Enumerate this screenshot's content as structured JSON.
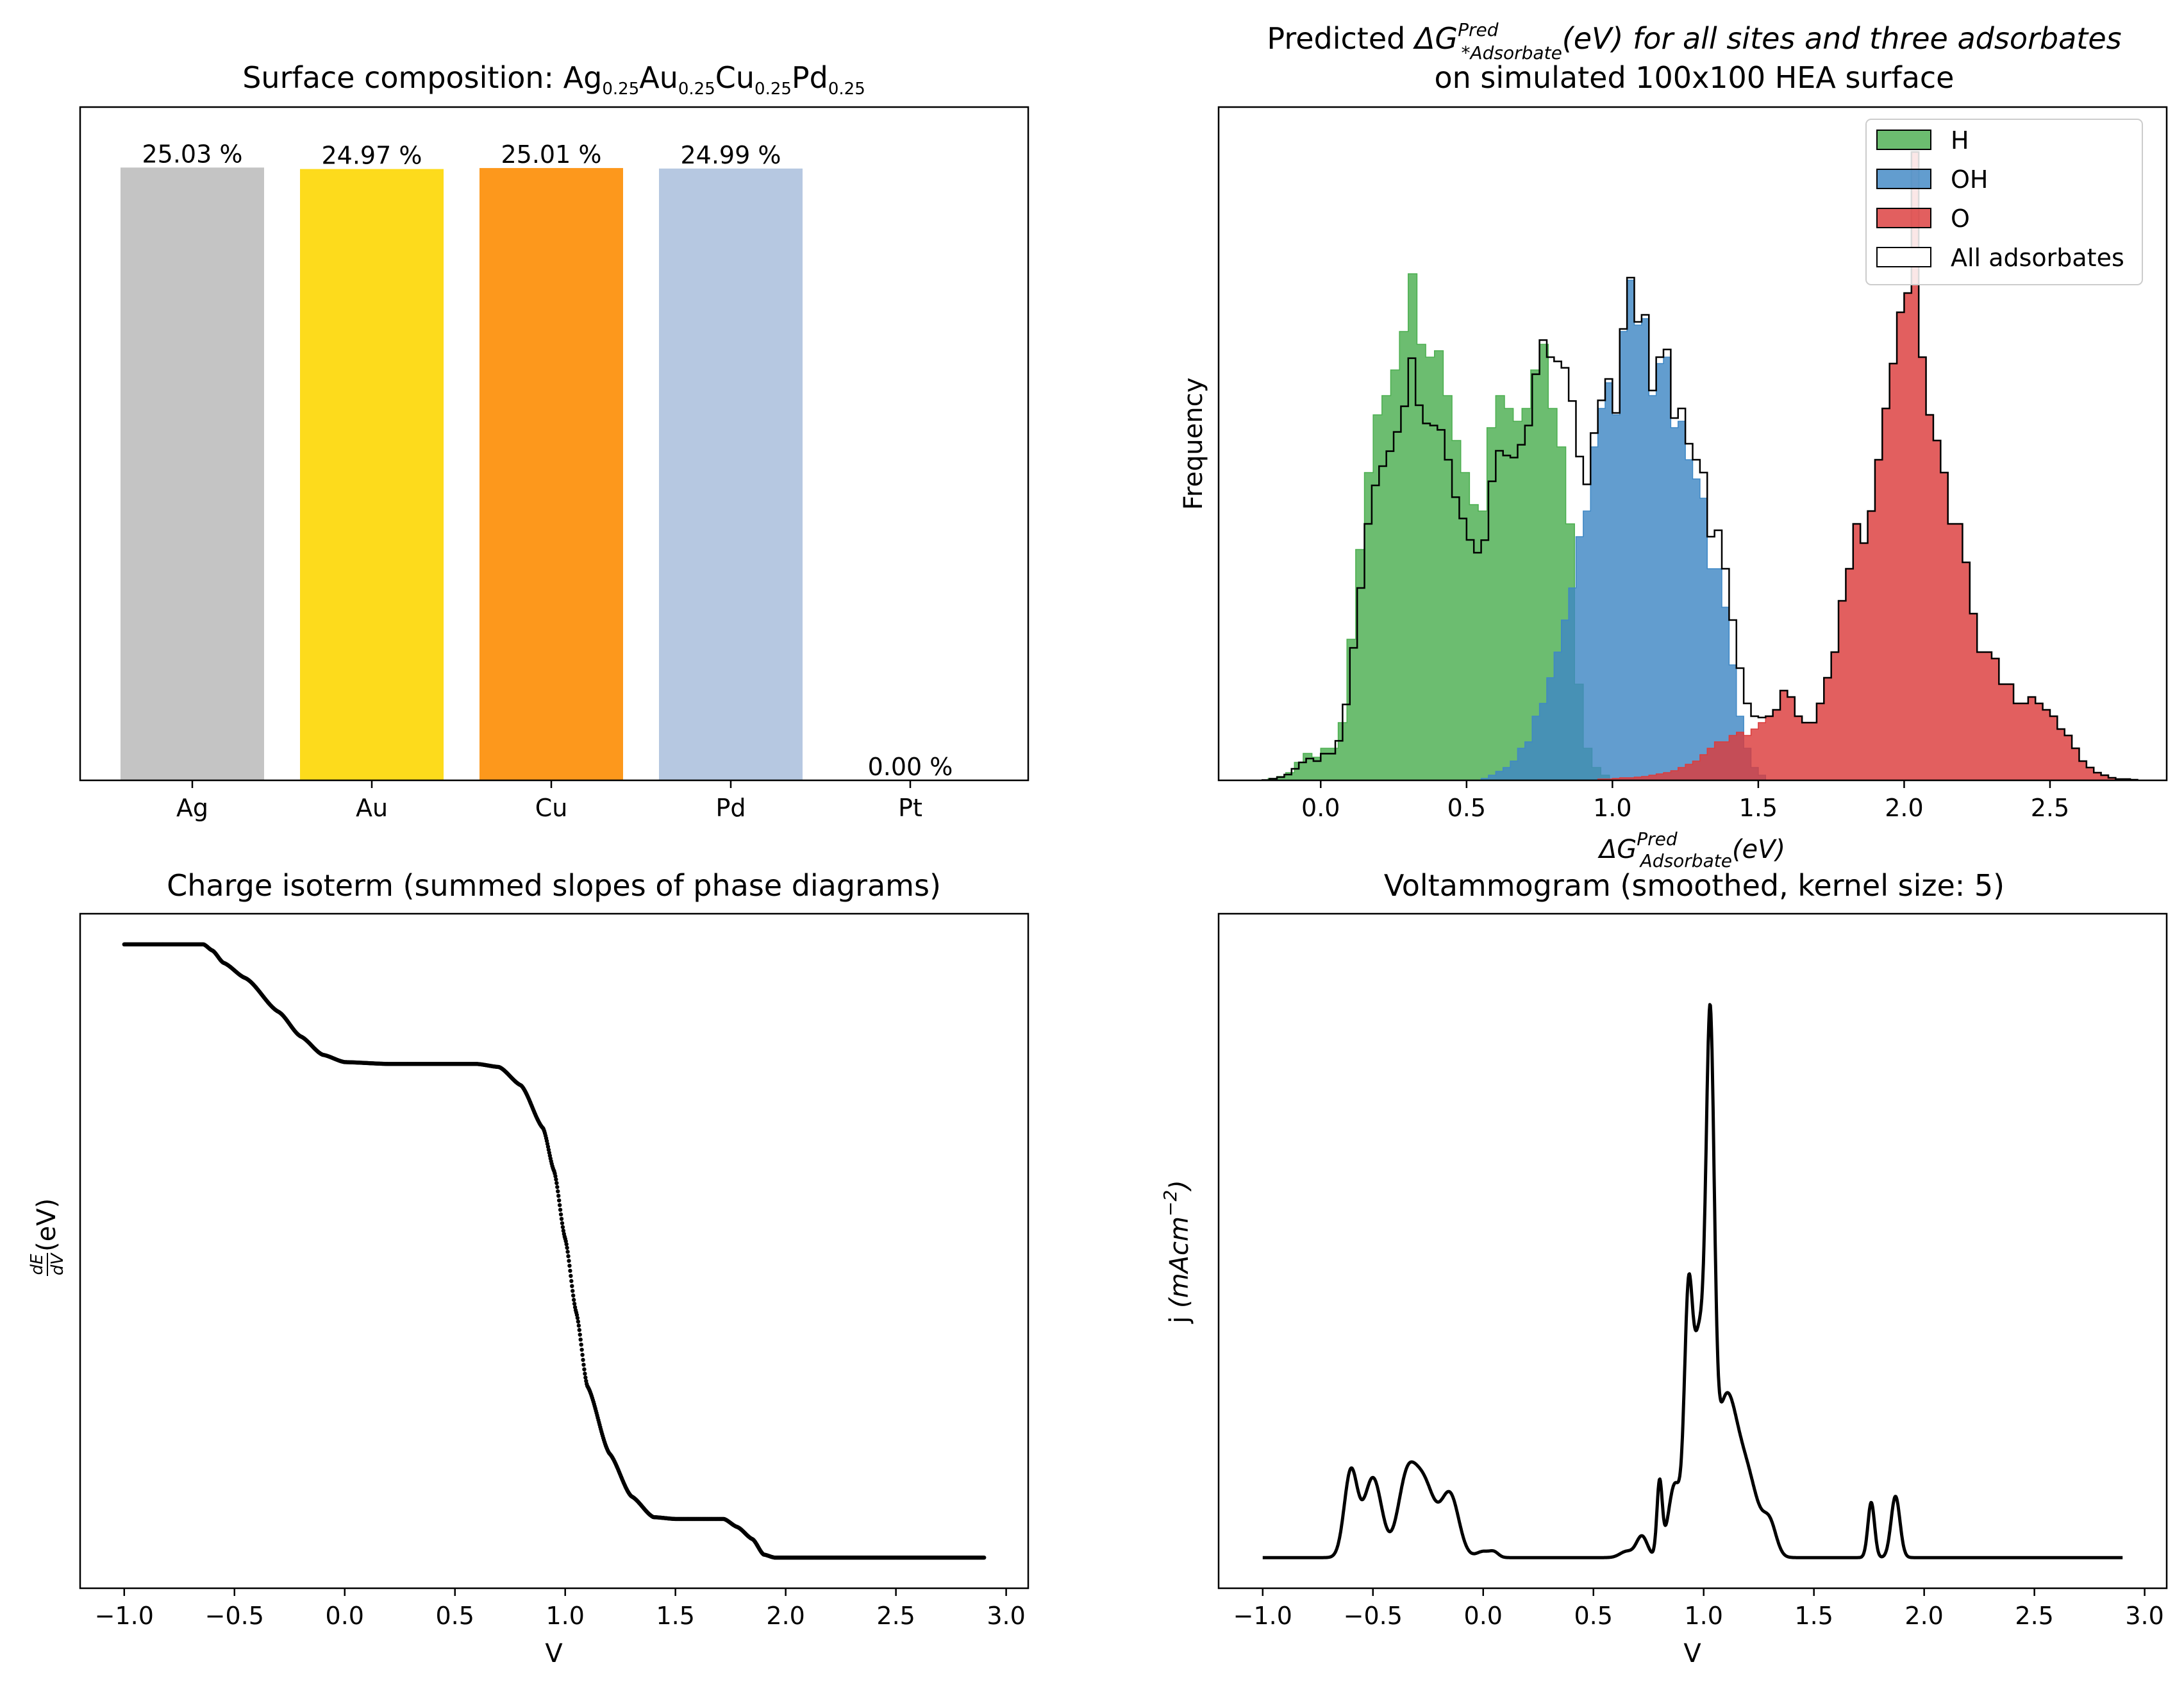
{
  "chart_data": [
    {
      "type": "bar",
      "title_main": "Surface composition: ",
      "title_parts": [
        {
          "el": "Ag",
          "sub": "0.25"
        },
        {
          "el": "Au",
          "sub": "0.25"
        },
        {
          "el": "Cu",
          "sub": "0.25"
        },
        {
          "el": "Pd",
          "sub": "0.25"
        }
      ],
      "categories": [
        "Ag",
        "Au",
        "Cu",
        "Pd",
        "Pt"
      ],
      "values": [
        25.03,
        24.97,
        25.01,
        24.99,
        0.0
      ],
      "value_labels": [
        "25.03 %",
        "24.97 %",
        "25.01 %",
        "24.99 %",
        "0.00 %"
      ],
      "colors": [
        "#c4c4c4",
        "#fddb1c",
        "#fd981c",
        "#b6c8e1",
        "#e5e4e2"
      ],
      "ylim": [
        0,
        27.5
      ],
      "yticks_shown": false
    },
    {
      "type": "histogram",
      "title_line1_pre": "Predicted ",
      "title_line1_sym": "ΔG",
      "title_line1_sup": "Pred",
      "title_line1_sub": "*Adsorbate",
      "title_line1_post": "(eV) for all sites and three adsorbates",
      "title_line2": "on simulated 100x100 HEA surface",
      "xlabel_sym": "ΔG",
      "xlabel_sup": "Pred",
      "xlabel_sub": "Adsorbate",
      "xlabel_post": "(eV)",
      "ylabel": "Frequency",
      "xlim": [
        -0.35,
        2.9
      ],
      "xticks": [
        0.0,
        0.5,
        1.0,
        1.5,
        2.0,
        2.5
      ],
      "xtick_labels": [
        "0.0",
        "0.5",
        "1.0",
        "1.5",
        "2.0",
        "2.5"
      ],
      "ylim": [
        0,
        1.05
      ],
      "legend": [
        "H",
        "OH",
        "O",
        "All adsorbates"
      ],
      "legend_position": "upper right",
      "series": [
        {
          "name": "H",
          "color": "#4caf50",
          "bin_width": 0.03,
          "bin_start": -0.18,
          "counts": [
            0.003,
            0.006,
            0.012,
            0.028,
            0.042,
            0.036,
            0.05,
            0.05,
            0.09,
            0.22,
            0.36,
            0.48,
            0.57,
            0.6,
            0.64,
            0.7,
            0.79,
            0.68,
            0.66,
            0.67,
            0.6,
            0.53,
            0.48,
            0.43,
            0.42,
            0.55,
            0.6,
            0.58,
            0.56,
            0.58,
            0.64,
            0.68,
            0.58,
            0.52,
            0.4,
            0.15,
            0.05,
            0.02,
            0.008
          ]
        },
        {
          "name": "OH",
          "color": "#3f88c5",
          "bin_width": 0.025,
          "bin_start": 0.55,
          "counts": [
            0.003,
            0.008,
            0.014,
            0.02,
            0.03,
            0.05,
            0.06,
            0.1,
            0.12,
            0.16,
            0.2,
            0.25,
            0.3,
            0.38,
            0.42,
            0.52,
            0.58,
            0.62,
            0.57,
            0.7,
            0.78,
            0.71,
            0.72,
            0.6,
            0.65,
            0.66,
            0.55,
            0.56,
            0.5,
            0.47,
            0.44,
            0.33,
            0.33,
            0.27,
            0.18,
            0.1,
            0.05,
            0.02,
            0.008
          ]
        },
        {
          "name": "O",
          "color": "#dc3c3c",
          "bin_width": 0.025,
          "bin_start": 0.95,
          "counts": [
            0.002,
            0.002,
            0.003,
            0.004,
            0.004,
            0.005,
            0.006,
            0.008,
            0.01,
            0.012,
            0.015,
            0.02,
            0.025,
            0.03,
            0.04,
            0.05,
            0.06,
            0.06,
            0.07,
            0.075,
            0.07,
            0.08,
            0.09,
            0.1,
            0.11,
            0.14,
            0.13,
            0.1,
            0.09,
            0.09,
            0.12,
            0.16,
            0.2,
            0.28,
            0.33,
            0.4,
            0.37,
            0.42,
            0.5,
            0.58,
            0.65,
            0.73,
            0.76,
            0.98,
            0.66,
            0.57,
            0.53,
            0.48,
            0.4,
            0.4,
            0.34,
            0.26,
            0.2,
            0.2,
            0.19,
            0.15,
            0.15,
            0.12,
            0.12,
            0.13,
            0.12,
            0.11,
            0.1,
            0.08,
            0.07,
            0.05,
            0.03,
            0.02,
            0.012,
            0.008,
            0.004,
            0.002,
            0.002,
            0.001
          ]
        }
      ],
      "all_line_color": "#000000"
    },
    {
      "type": "scatter",
      "title": "Charge isoterm (summed slopes of phase diagrams)",
      "xlabel": "V",
      "ylabel_frac_num": "dE",
      "ylabel_frac_den": "dV",
      "ylabel_post": " (eV)",
      "xlim": [
        -1.2,
        3.1
      ],
      "xticks": [
        -1.0,
        -0.5,
        0.0,
        0.5,
        1.0,
        1.5,
        2.0,
        2.5,
        3.0
      ],
      "xtick_labels": [
        "−1.0",
        "−0.5",
        "0.0",
        "0.5",
        "1.0",
        "1.5",
        "2.0",
        "2.5",
        "3.0"
      ],
      "ylim": [
        -0.05,
        1.05
      ],
      "x_range": [
        -1.0,
        2.9
      ],
      "curve_knots": [
        [
          -1.0,
          1.0
        ],
        [
          -0.64,
          1.0
        ],
        [
          -0.6,
          0.99
        ],
        [
          -0.55,
          0.97
        ],
        [
          -0.45,
          0.945
        ],
        [
          -0.3,
          0.89
        ],
        [
          -0.2,
          0.85
        ],
        [
          -0.1,
          0.82
        ],
        [
          0.0,
          0.808
        ],
        [
          0.2,
          0.805
        ],
        [
          0.6,
          0.805
        ],
        [
          0.7,
          0.8
        ],
        [
          0.8,
          0.77
        ],
        [
          0.9,
          0.7
        ],
        [
          0.95,
          0.63
        ],
        [
          1.0,
          0.52
        ],
        [
          1.05,
          0.4
        ],
        [
          1.1,
          0.28
        ],
        [
          1.2,
          0.17
        ],
        [
          1.3,
          0.1
        ],
        [
          1.4,
          0.066
        ],
        [
          1.5,
          0.063
        ],
        [
          1.72,
          0.063
        ],
        [
          1.78,
          0.05
        ],
        [
          1.85,
          0.03
        ],
        [
          1.9,
          0.005
        ],
        [
          1.95,
          0.0
        ],
        [
          2.9,
          0.0
        ]
      ]
    },
    {
      "type": "line",
      "title": "Voltammogram (smoothed, kernel size: 5)",
      "xlabel": "V",
      "ylabel_pre": "j ",
      "ylabel_unit": "(mAcm",
      "ylabel_exp": "−2",
      "ylabel_close": ")",
      "xlim": [
        -1.2,
        3.1
      ],
      "xticks": [
        -1.0,
        -0.5,
        0.0,
        0.5,
        1.0,
        1.5,
        2.0,
        2.5,
        3.0
      ],
      "xtick_labels": [
        "−1.0",
        "−0.5",
        "0.0",
        "0.5",
        "1.0",
        "1.5",
        "2.0",
        "2.5",
        "3.0"
      ],
      "ylim": [
        -0.05,
        1.05
      ],
      "x_range": [
        -1.0,
        2.9
      ],
      "peaks": [
        [
          -0.6,
          0.14,
          0.03
        ],
        [
          -0.5,
          0.13,
          0.04
        ],
        [
          -0.35,
          0.11,
          0.04
        ],
        [
          -0.27,
          0.12,
          0.05
        ],
        [
          -0.15,
          0.1,
          0.04
        ],
        [
          0.0,
          0.01,
          0.03
        ],
        [
          0.05,
          0.008,
          0.02
        ],
        [
          0.65,
          0.01,
          0.03
        ],
        [
          0.72,
          0.035,
          0.025
        ],
        [
          0.8,
          0.12,
          0.012
        ],
        [
          0.87,
          0.12,
          0.03
        ],
        [
          0.93,
          0.35,
          0.018
        ],
        [
          0.98,
          0.35,
          0.03
        ],
        [
          1.03,
          0.72,
          0.018
        ],
        [
          1.1,
          0.25,
          0.05
        ],
        [
          1.2,
          0.12,
          0.05
        ],
        [
          1.3,
          0.05,
          0.03
        ],
        [
          1.76,
          0.09,
          0.015
        ],
        [
          1.87,
          0.1,
          0.02
        ]
      ]
    }
  ]
}
